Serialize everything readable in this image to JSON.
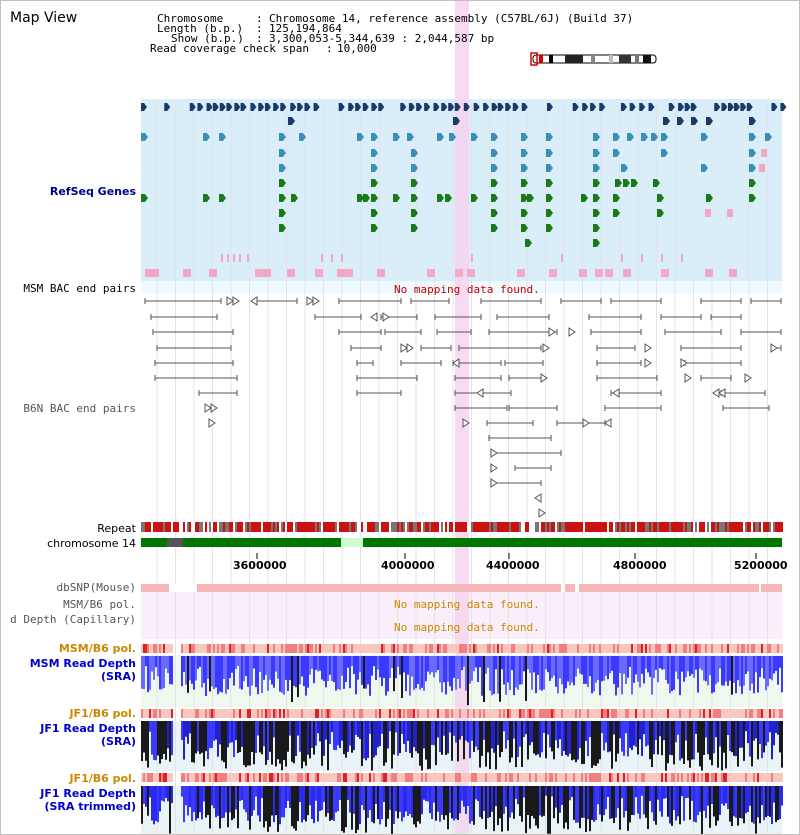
{
  "view_title": "Map View",
  "header": {
    "chromosome_label": "Chromosome",
    "chromosome_value": "Chromosome 14, reference assembly (C57BL/6J) (Build 37)",
    "length_label": "Length (b.p.)",
    "length_value": "125,194,864",
    "show_label": "Show (b.p.)",
    "show_value": "3,300,053-5,344,639 : 2,044,587 bp",
    "coverage_label": "Read coverage check span",
    "coverage_value": "10,000"
  },
  "tracks": {
    "refseq_genes": "RefSeq Genes",
    "msm_bac": "MSM BAC end pairs",
    "b6n_bac": "B6N BAC end pairs",
    "no_mapping_msm_bac": "No mapping data found.",
    "repeat": "Repeat",
    "chromosome": "chromosome 14",
    "dbsnp": "dbSNP(Mouse)",
    "msm_b6_pol_top": "MSM/B6 pol.",
    "read_depth_capillary": "d Depth (Capillary)",
    "no_mapping_pol": "No mapping data found.",
    "no_mapping_capillary": "No mapping data found.",
    "msm_b6_pol": "MSM/B6 pol.",
    "msm_read_depth": "MSM Read Depth",
    "msm_read_depth_sub": "(SRA)",
    "jf1_b6_pol": "JF1/B6 pol.",
    "jf1_read_depth": "JF1 Read Depth",
    "jf1_read_depth_sub": "(SRA)",
    "jf1_b6_pol_2": "JF1/B6 pol.",
    "jf1_read_depth_2": "JF1 Read Depth",
    "jf1_read_depth_2_sub": "(SRA trimmed)"
  },
  "axis_ticks": [
    "3600000",
    "4000000",
    "4400000",
    "4800000",
    "5200000"
  ],
  "colors": {
    "refseq_bg": "#d9eef8",
    "highlight": "#f5d3ee",
    "gene_navy": "#1a3a6b",
    "gene_teal": "#3a8fb8",
    "gene_green": "#1a7a1a",
    "gene_pink": "#f4a8c8",
    "pol_bg": "#fbeefb",
    "depth_bg": "#eef8ee",
    "depth_blue": "#3a3aff",
    "depth_black": "#1a1a1a",
    "chrom_green": "#007700"
  }
}
